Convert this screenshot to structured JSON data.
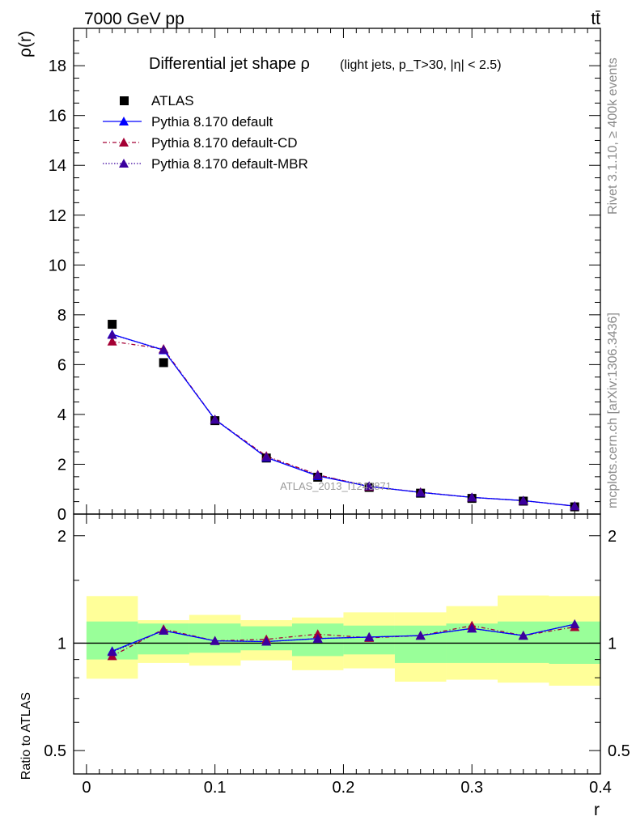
{
  "header": {
    "energy": "7000 GeV pp",
    "process": "tt̄"
  },
  "side_text": {
    "rivet": "Rivet 3.1.10, ≥ 400k events",
    "source": "mcplots.cern.ch [arXiv:1306.3436]"
  },
  "chart_data": {
    "type": "line",
    "title": "Differential jet shape ρ",
    "title_detail": "(light jets, p_T>30, |η| < 2.5)",
    "watermark": "ATLAS_2013_I1243871",
    "xlabel": "r",
    "xlim": [
      -0.01,
      0.4
    ],
    "xticks": [
      0,
      0.1,
      0.2,
      0.3,
      0.4
    ],
    "xtick_labels": [
      "0",
      "0.1",
      "0.2",
      "0.3",
      "0.4"
    ],
    "main": {
      "ylabel": "ρ(r)",
      "ylim": [
        0,
        19.5
      ],
      "yticks": [
        0,
        2,
        4,
        6,
        8,
        10,
        12,
        14,
        16,
        18
      ],
      "ytick_labels": [
        "0",
        "2",
        "4",
        "6",
        "8",
        "10",
        "12",
        "14",
        "16",
        "18"
      ],
      "x": [
        0.02,
        0.06,
        0.1,
        0.14,
        0.18,
        0.22,
        0.26,
        0.3,
        0.34,
        0.38
      ],
      "series": [
        {
          "name": "ATLAS",
          "color": "#000000",
          "marker": "square",
          "line": "none",
          "values": [
            7.62,
            6.08,
            3.75,
            2.25,
            1.48,
            1.07,
            0.84,
            0.63,
            0.52,
            0.29
          ]
        },
        {
          "name": "Pythia 8.170 default",
          "color": "#0000ff",
          "marker": "triangle",
          "line": "solid",
          "values": [
            7.22,
            6.58,
            3.8,
            2.27,
            1.53,
            1.11,
            0.87,
            0.67,
            0.54,
            0.32
          ]
        },
        {
          "name": "Pythia 8.170 default-CD",
          "color": "#a50034",
          "marker": "triangle",
          "line": "dashdot",
          "values": [
            6.93,
            6.63,
            3.8,
            2.33,
            1.58,
            1.1,
            0.88,
            0.67,
            0.54,
            0.32
          ]
        },
        {
          "name": "Pythia 8.170 default-MBR",
          "color": "#3b009e",
          "marker": "triangle",
          "line": "dotted",
          "values": [
            7.2,
            6.6,
            3.79,
            2.29,
            1.56,
            1.12,
            0.87,
            0.67,
            0.54,
            0.32
          ]
        }
      ]
    },
    "ratio": {
      "ylabel": "Ratio to ATLAS",
      "scale": "log",
      "ylim": [
        0.43,
        2.3
      ],
      "yticks": [
        0.5,
        1,
        2
      ],
      "ytick_labels": [
        "0.5",
        "1",
        "2"
      ],
      "bins": [
        [
          0.0,
          0.04
        ],
        [
          0.04,
          0.08
        ],
        [
          0.08,
          0.12
        ],
        [
          0.12,
          0.16
        ],
        [
          0.16,
          0.2
        ],
        [
          0.2,
          0.24
        ],
        [
          0.24,
          0.28
        ],
        [
          0.28,
          0.32
        ],
        [
          0.32,
          0.36
        ],
        [
          0.36,
          0.4
        ]
      ],
      "band_stat": {
        "color": "#99ff99",
        "lo": [
          0.9,
          0.93,
          0.94,
          0.955,
          0.92,
          0.93,
          0.88,
          0.88,
          0.88,
          0.875
        ],
        "hi": [
          1.15,
          1.135,
          1.135,
          1.115,
          1.135,
          1.12,
          1.12,
          1.135,
          1.15,
          1.15
        ]
      },
      "band_total": {
        "color": "#ffff99",
        "lo": [
          0.795,
          0.88,
          0.865,
          0.895,
          0.84,
          0.85,
          0.78,
          0.79,
          0.775,
          0.76
        ],
        "hi": [
          1.355,
          1.16,
          1.2,
          1.16,
          1.18,
          1.22,
          1.22,
          1.27,
          1.36,
          1.355
        ]
      },
      "series": [
        {
          "name": "Pythia 8.170 default",
          "values": [
            0.95,
            1.085,
            1.015,
            1.01,
            1.03,
            1.04,
            1.05,
            1.1,
            1.05,
            1.13
          ]
        },
        {
          "name": "Pythia 8.170 default-CD",
          "values": [
            0.92,
            1.095,
            1.015,
            1.025,
            1.06,
            1.035,
            1.05,
            1.12,
            1.05,
            1.11
          ]
        },
        {
          "name": "Pythia 8.170 default-MBR",
          "values": [
            0.945,
            1.085,
            1.015,
            1.01,
            1.03,
            1.04,
            1.05,
            1.1,
            1.05,
            1.13
          ]
        }
      ]
    }
  }
}
